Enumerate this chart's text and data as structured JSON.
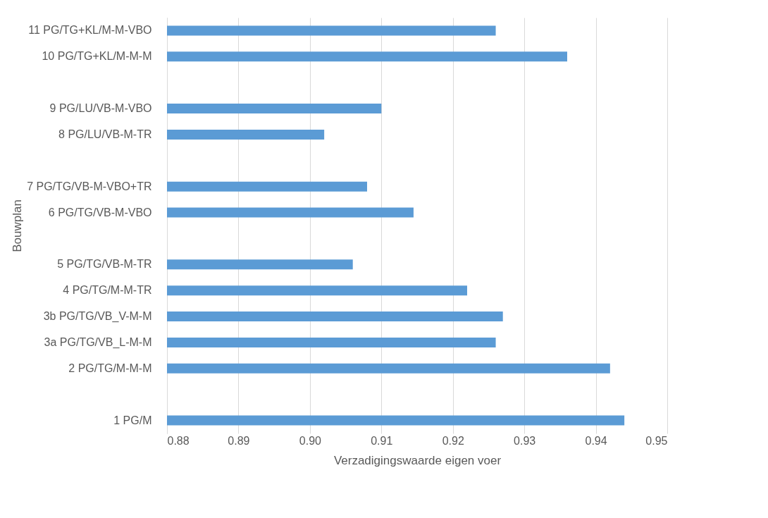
{
  "chart_data": {
    "type": "bar",
    "orientation": "horizontal",
    "xlabel": "Verzadigingswaarde eigen voer",
    "ylabel": "Bouwplan",
    "categories": [
      "11 PG/TG+KL/M-M-VBO",
      "10 PG/TG+KL/M-M-M",
      null,
      "9 PG/LU/VB-M-VBO",
      "8 PG/LU/VB-M-TR",
      null,
      "7 PG/TG/VB-M-VBO+TR",
      "6 PG/TG/VB-M-VBO",
      null,
      "5 PG/TG/VB-M-TR",
      "4 PG/TG/M-M-TR",
      "3b PG/TG/VB_V-M-M",
      "3a PG/TG/VB_L-M-M",
      "2 PG/TG/M-M-M",
      null,
      "1 PG/M"
    ],
    "values": [
      0.926,
      0.936,
      null,
      0.91,
      0.902,
      null,
      0.908,
      0.9145,
      null,
      0.906,
      0.922,
      0.927,
      0.926,
      0.942,
      null,
      0.944
    ],
    "color": "#5b9bd5",
    "xlim": [
      0.88,
      0.95
    ],
    "xticks": [
      0.88,
      0.89,
      {
        "value": 0.9,
        "label": "0.90"
      },
      0.91,
      0.92,
      0.93,
      0.94,
      0.95
    ],
    "grid": "x",
    "legend": false
  }
}
